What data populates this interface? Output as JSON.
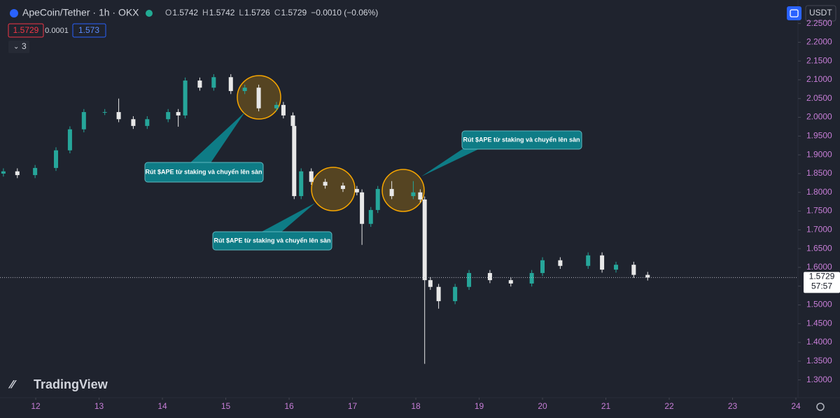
{
  "chart_data": {
    "type": "candlestick",
    "title": "ApeCoin/Tether · 1h · OKX",
    "ohlc_labels": [
      "O",
      "H",
      "L",
      "C"
    ],
    "ohlc_values": [
      1.5742,
      1.5742,
      1.5726,
      1.5729
    ],
    "change": "−0.0010 (−0.06%)",
    "bid": 1.5729,
    "spread": 0.0001,
    "ask": 1.573,
    "indicator_count": 3,
    "currency": "USDT",
    "brand": "TradingView",
    "last_price": 1.5729,
    "countdown": "57:57",
    "up_color": "#26a69a",
    "down_color": "#e8e8e8",
    "annotations": [
      "Rút $APE từ staking và chuyển lên sàn",
      "Rút $APE từ staking và chuyển lên sàn",
      "Rút $APE từ staking và chuyển lên sàn"
    ],
    "x": [
      11.49,
      11.71,
      11.99,
      12.32,
      12.54,
      12.76,
      13.09,
      13.31,
      13.54,
      13.76,
      14.09,
      14.25,
      14.36,
      14.59,
      14.81,
      15.08,
      15.3,
      15.52,
      15.8,
      15.91,
      16.06,
      16.08,
      16.19,
      16.35,
      16.57,
      16.85,
      17.07,
      17.15,
      17.29,
      17.4,
      17.62,
      17.96,
      18.07,
      18.14,
      18.23,
      18.36,
      18.62,
      18.84,
      19.17,
      19.5,
      19.83,
      20.0,
      20.28,
      20.72,
      20.94,
      21.16,
      21.44,
      21.66
    ],
    "open": [
      1.85,
      1.856,
      1.846,
      1.865,
      1.912,
      1.968,
      2.014,
      2.014,
      1.995,
      1.977,
      1.995,
      2.014,
      2.005,
      2.098,
      2.079,
      2.107,
      2.07,
      2.079,
      2.024,
      2.033,
      2.005,
      1.977,
      1.79,
      1.856,
      1.828,
      1.818,
      1.809,
      1.8,
      1.716,
      1.753,
      1.809,
      1.79,
      1.8,
      1.781,
      1.566,
      1.548,
      1.51,
      1.548,
      1.585,
      1.566,
      1.557,
      1.585,
      1.619,
      1.604,
      1.632,
      1.594,
      1.607,
      1.58
    ],
    "high": [
      1.864,
      1.864,
      1.873,
      1.92,
      1.976,
      2.022,
      2.022,
      2.05,
      2.003,
      2.003,
      2.022,
      2.022,
      2.106,
      2.106,
      2.115,
      2.115,
      2.087,
      2.087,
      2.041,
      2.041,
      2.013,
      1.985,
      1.864,
      1.864,
      1.836,
      1.826,
      1.817,
      1.808,
      1.761,
      1.817,
      1.83,
      1.83,
      1.808,
      1.789,
      1.574,
      1.556,
      1.556,
      1.593,
      1.593,
      1.574,
      1.593,
      1.627,
      1.627,
      1.64,
      1.64,
      1.615,
      1.615,
      1.588
    ],
    "low": [
      1.842,
      1.838,
      1.838,
      1.857,
      1.904,
      1.96,
      2.006,
      1.987,
      1.969,
      1.969,
      1.987,
      1.975,
      1.997,
      2.071,
      2.071,
      2.062,
      2.062,
      2.016,
      2.016,
      1.997,
      1.969,
      1.782,
      1.782,
      1.82,
      1.81,
      1.801,
      1.792,
      1.66,
      1.708,
      1.745,
      1.782,
      1.782,
      1.773,
      1.343,
      1.54,
      1.49,
      1.502,
      1.54,
      1.558,
      1.549,
      1.549,
      1.577,
      1.596,
      1.596,
      1.586,
      1.586,
      1.572,
      1.565
    ],
    "close": [
      1.856,
      1.846,
      1.865,
      1.912,
      1.968,
      2.014,
      2.014,
      1.995,
      1.977,
      1.995,
      2.014,
      2.005,
      2.098,
      2.079,
      2.107,
      2.07,
      2.079,
      2.024,
      2.033,
      2.005,
      1.977,
      1.79,
      1.856,
      1.828,
      1.818,
      1.809,
      1.8,
      1.716,
      1.753,
      1.809,
      1.79,
      1.8,
      1.781,
      1.566,
      1.548,
      1.51,
      1.548,
      1.585,
      1.566,
      1.557,
      1.585,
      1.619,
      1.604,
      1.632,
      1.594,
      1.607,
      1.58,
      1.5729
    ],
    "xlim": [
      11.436,
      24.033
    ],
    "xticks": [
      12,
      13,
      14,
      15,
      16,
      17,
      18,
      19,
      20,
      21,
      22,
      23,
      24
    ],
    "ylim": [
      1.2527,
      2.2567
    ],
    "yticks": [
      {
        "value": 1.3,
        "label": "1.3000"
      },
      {
        "value": 1.35,
        "label": "1.3500"
      },
      {
        "value": 1.4,
        "label": "1.4000"
      },
      {
        "value": 1.45,
        "label": "1.4500"
      },
      {
        "value": 1.5,
        "label": "1.5000"
      },
      {
        "value": 1.55,
        "label": "1.5500"
      },
      {
        "value": 1.6,
        "label": "1.6000"
      },
      {
        "value": 1.65,
        "label": "1.6500"
      },
      {
        "value": 1.7,
        "label": "1.7000"
      },
      {
        "value": 1.75,
        "label": "1.7500"
      },
      {
        "value": 1.8,
        "label": "1.8000"
      },
      {
        "value": 1.85,
        "label": "1.8500"
      },
      {
        "value": 1.9,
        "label": "1.9000"
      },
      {
        "value": 1.95,
        "label": "1.9500"
      },
      {
        "value": 2.0,
        "label": "2.0000"
      },
      {
        "value": 2.05,
        "label": "2.0500"
      },
      {
        "value": 2.1,
        "label": "2.1000"
      },
      {
        "value": 2.15,
        "label": "2.1500"
      },
      {
        "value": 2.2,
        "label": "2.2000"
      },
      {
        "value": 2.25,
        "label": "2.2500"
      }
    ],
    "grid": false
  }
}
